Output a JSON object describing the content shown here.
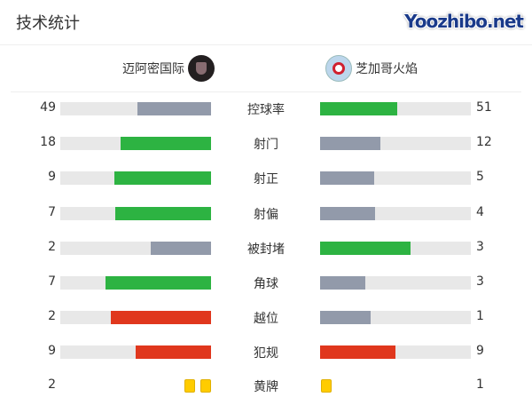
{
  "title": "技术统计",
  "home_team": {
    "name": "迈阿密国际",
    "logo": "inter-miami-crest"
  },
  "away_team": {
    "name": "芝加哥火焰",
    "logo": "chicago-fire-crest"
  },
  "colors": {
    "green": "#2db342",
    "gray": "#929aaa",
    "red": "#e0371d",
    "yellow": "#ffcc00",
    "track": "#e8e8e8"
  },
  "stats": [
    {
      "label": "控球率",
      "home": 49,
      "away": 51,
      "home_color": "gray",
      "away_color": "green"
    },
    {
      "label": "射门",
      "home": 18,
      "away": 12,
      "home_color": "green",
      "away_color": "gray"
    },
    {
      "label": "射正",
      "home": 9,
      "away": 5,
      "home_color": "green",
      "away_color": "gray"
    },
    {
      "label": "射偏",
      "home": 7,
      "away": 4,
      "home_color": "green",
      "away_color": "gray"
    },
    {
      "label": "被封堵",
      "home": 2,
      "away": 3,
      "home_color": "gray",
      "away_color": "green"
    },
    {
      "label": "角球",
      "home": 7,
      "away": 3,
      "home_color": "green",
      "away_color": "gray"
    },
    {
      "label": "越位",
      "home": 2,
      "away": 1,
      "home_color": "red",
      "away_color": "gray"
    },
    {
      "label": "犯规",
      "home": 9,
      "away": 9,
      "home_color": "red",
      "away_color": "red"
    }
  ],
  "yellow_cards": {
    "label": "黄牌",
    "home": 2,
    "away": 1
  },
  "watermark": "Yoozhibo.net"
}
